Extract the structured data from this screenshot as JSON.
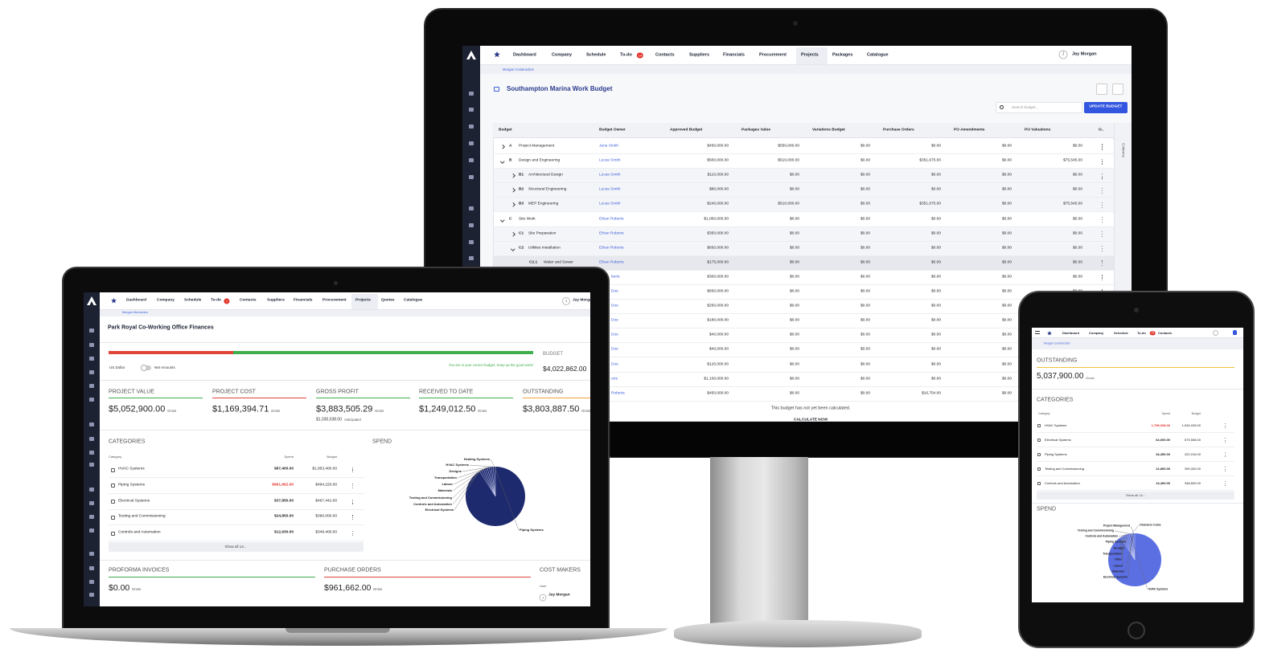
{
  "monitor": {
    "nav": [
      "Dashboard",
      "Company",
      "Schedule",
      "To-do",
      "Contacts",
      "Suppliers",
      "Financials",
      "Procurement",
      "Projects",
      "Packages",
      "Catalogue"
    ],
    "todo_badge": "14",
    "user": {
      "initial": "J",
      "name": "Jay Morgan"
    },
    "breadcrumb": "Morgan Construction",
    "title": "Southampton Marina Work Budget",
    "search_placeholder": "Search budget...",
    "update_button": "UPDATE BUDGET",
    "columns_tab": "Columns",
    "table": {
      "headers": [
        "Budget",
        "Budget Owner",
        "Approved Budget",
        "Packages Value",
        "Variations Budget",
        "Purchase Orders",
        "PO Amendments",
        "PO Valuations",
        "O.."
      ],
      "rows": [
        {
          "code": "A",
          "name": "Project Management",
          "owner": "Jane Smith",
          "cells": [
            "$450,000.00",
            "$550,000.00",
            "$0.00",
            "$0.00",
            "$0.00",
            "$0.00"
          ]
        },
        {
          "code": "B",
          "name": "Design and Engineering",
          "owner": "Lucas Smith",
          "cells": [
            "$500,000.00",
            "$510,000.00",
            "$0.00",
            "$351,675.00",
            "$0.00",
            "$75,545.00"
          ]
        },
        {
          "code": "B1",
          "name": "Architectural Design",
          "owner": "Lucas Smith",
          "cells": [
            "$110,000.00",
            "$0.00",
            "$0.00",
            "$0.00",
            "$0.00",
            "$0.00"
          ]
        },
        {
          "code": "B2",
          "name": "Structural Engineering",
          "owner": "Lucas Smith",
          "cells": [
            "$80,000.00",
            "$0.00",
            "$0.00",
            "$0.00",
            "$0.00",
            "$0.00"
          ]
        },
        {
          "code": "B3",
          "name": "MEP Engineering",
          "owner": "Lucas Smith",
          "cells": [
            "$240,000.00",
            "$510,000.00",
            "$0.00",
            "$351,675.00",
            "$0.00",
            "$75,545.00"
          ]
        },
        {
          "code": "C",
          "name": "Site Work",
          "owner": "Ethan Roberts",
          "cells": [
            "$1,000,000.00",
            "$0.00",
            "$0.00",
            "$0.00",
            "$0.00",
            "$0.00"
          ]
        },
        {
          "code": "C1",
          "name": "Site Preparation",
          "owner": "Ethan Roberts",
          "cells": [
            "$350,000.00",
            "$0.00",
            "$0.00",
            "$0.00",
            "$0.00",
            "$0.00"
          ]
        },
        {
          "code": "C2",
          "name": "Utilities Installation",
          "owner": "Ethan Roberts",
          "cells": [
            "$650,000.00",
            "$0.00",
            "$0.00",
            "$0.00",
            "$0.00",
            "$0.00"
          ]
        },
        {
          "code": "C2.1",
          "name": "Water and Sewer",
          "owner": "Ethan Roberts",
          "cells": [
            "$175,000.00",
            "$0.00",
            "$0.00",
            "$0.00",
            "$0.00",
            "$0.00"
          ]
        },
        {
          "owner": "berts",
          "cells": [
            "$300,000.00",
            "$0.00",
            "$0.00",
            "$0.00",
            "$0.00",
            "$0.00"
          ]
        },
        {
          "owner": "Doe",
          "cells": [
            "$650,000.00",
            "$0.00",
            "$0.00",
            "$0.00",
            "$0.00",
            "$0.00"
          ]
        },
        {
          "owner": "Doe",
          "cells": [
            "$250,000.00",
            "$0.00",
            "$0.00",
            "$0.00",
            "$0.00",
            "$0.00"
          ]
        },
        {
          "owner": "Doe",
          "cells": [
            "$180,000.00",
            "$0.00",
            "$0.00",
            "$0.00",
            "$0.00",
            "$0.00"
          ]
        },
        {
          "owner": "Doe",
          "cells": [
            "$40,000.00",
            "$0.00",
            "$0.00",
            "$0.00",
            "$0.00",
            "$0.00"
          ]
        },
        {
          "owner": "Doe",
          "cells": [
            "$40,000.00",
            "$0.00",
            "$0.00",
            "$0.00",
            "$0.00",
            "$0.00"
          ]
        },
        {
          "owner": "Doe",
          "cells": [
            "$120,000.00",
            "$0.00",
            "$0.00",
            "$0.00",
            "$0.00",
            "$0.00"
          ]
        },
        {
          "owner": "erts",
          "cells": [
            "$1,100,000.00",
            "$0.00",
            "$0.00",
            "$0.00",
            "$0.00",
            "$0.00"
          ]
        },
        {
          "owner": "Roberts",
          "cells": [
            "$450,000.00",
            "$0.00",
            "$0.00",
            "$16,754.00",
            "$0.00",
            "$0.00"
          ]
        }
      ]
    },
    "notice": "This budget has not yet been calculated.",
    "calculate_button": "CALCULATE NOW"
  },
  "laptop": {
    "nav": [
      "Dashboard",
      "Company",
      "Schedule",
      "To-do",
      "Contacts",
      "Suppliers",
      "Financials",
      "Procurement",
      "Projects",
      "Quotes",
      "Catalogue"
    ],
    "todo_badge": "7",
    "user": {
      "initial": "J",
      "name": "Jay Morgan"
    },
    "breadcrumb": "Morgan Mechanics",
    "title": "Park Royal Co-Working Office Finances",
    "budget_label": "BUDGET",
    "budget_value": "$4,022,862.00",
    "currency": "US Dollar",
    "net_toggle": "Net Amounts",
    "budget_message": "You are in your correct budget. Keep up the good work!",
    "kpis": [
      {
        "label": "PROJECT VALUE",
        "value": "$5,052,900.00",
        "unit": "Gross"
      },
      {
        "label": "PROJECT COST",
        "value": "$1,169,394.71",
        "unit": "Gross"
      },
      {
        "label": "GROSS PROFIT",
        "value": "$3,883,505.29",
        "unit": "Gross",
        "sub_value": "$1,030,038.00",
        "sub_unit": "Anticipated"
      },
      {
        "label": "RECEIVED TO DATE",
        "value": "$1,249,012.50",
        "unit": "Gross"
      },
      {
        "label": "OUTSTANDING",
        "value": "$3,803,887.50",
        "unit": "Gross"
      }
    ],
    "categories": {
      "title": "CATEGORIES",
      "headers": [
        "Category",
        "Spend",
        "Budget"
      ],
      "rows": [
        {
          "name": "HVAC Systems",
          "spend": "$87,400.00",
          "budget": "$1,953,400.00"
        },
        {
          "name": "Piping Systems",
          "spend": "$961,662.00",
          "budget": "$494,220.00"
        },
        {
          "name": "Electrical Systems",
          "spend": "$37,850.00",
          "budget": "$467,442.00"
        },
        {
          "name": "Testing and Commissioning",
          "spend": "$24,850.00",
          "budget": "$390,000.00"
        },
        {
          "name": "Controls and Automation",
          "spend": "$12,930.00",
          "budget": "$348,400.00"
        }
      ],
      "show_all": "Show all 14..."
    },
    "spend": {
      "title": "SPEND",
      "labels": [
        "Heating Systems",
        "HVAC Systems",
        "Designs",
        "Transportation",
        "Labour",
        "Materials",
        "Testing and Commissioning",
        "Controls and Automation",
        "Electrical Systems",
        "Piping Systems"
      ]
    },
    "proforma": {
      "label": "PROFORMA INVOICES",
      "value": "$0.00",
      "unit": "Gross"
    },
    "purchase_orders": {
      "label": "PURCHASE ORDERS",
      "value": "$961,662.00",
      "unit": "Gross"
    },
    "cost_makers": {
      "label": "COST MAKERS",
      "column": "User",
      "initial": "J",
      "name": "Jay Morgan"
    }
  },
  "tablet": {
    "nav": [
      "Dashboard",
      "Company",
      "Schedule",
      "To-do",
      "Contacts"
    ],
    "todo_badge": "14",
    "breadcrumb": "Morgan Construction",
    "outstanding": {
      "label": "OUTSTANDING",
      "value": "5,037,900.00",
      "unit": "Gross"
    },
    "categories": {
      "title": "CATEGORIES",
      "headers": [
        "Category",
        "Spend",
        "Budget"
      ],
      "rows": [
        {
          "name": "HVAC Systems",
          "spend": "1,759,038.00",
          "budget": "1,534,028.00"
        },
        {
          "name": "Electrical Systems",
          "spend": "64,000.00",
          "budget": "679,508.00"
        },
        {
          "name": "Piping Systems",
          "spend": "34,450.00",
          "budget": "422,016.00"
        },
        {
          "name": "Testing and Commissioning",
          "spend": "12,800.00",
          "budget": "390,000.00"
        },
        {
          "name": "Controls and Automation",
          "spend": "14,400.00",
          "budget": "348,600.00"
        }
      ],
      "show_all": "Show all 14..."
    },
    "spend": {
      "title": "SPEND",
      "labels": [
        "Project Management",
        "Clearance Costs",
        "Testing and Commissioning",
        "Controls and Automation",
        "Piping Systems",
        "Designs",
        "Transportation",
        "Other",
        "Labour",
        "Materials",
        "Electrical Systems",
        "HVAC Systems"
      ]
    }
  }
}
